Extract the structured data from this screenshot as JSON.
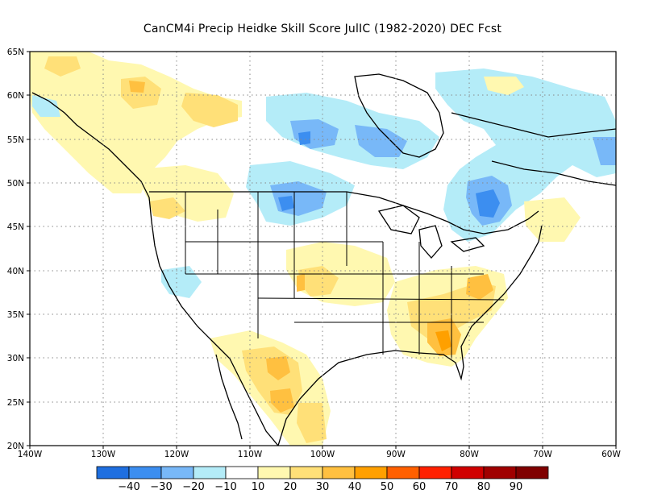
{
  "title": "CanCM4i Precip Heidke Skill Score JulIC (1982-2020) DEC Fcst",
  "axes": {
    "lat_labels": [
      "65N",
      "60N",
      "55N",
      "50N",
      "45N",
      "40N",
      "35N",
      "30N",
      "25N",
      "20N"
    ],
    "lon_labels": [
      "140W",
      "130W",
      "120W",
      "110W",
      "100W",
      "90W",
      "80W",
      "70W",
      "60W"
    ]
  },
  "colorbar": {
    "labels": [
      "-40",
      "-30",
      "-20",
      "-10",
      "10",
      "20",
      "30",
      "40",
      "50",
      "60",
      "70",
      "80",
      "90"
    ],
    "colors": [
      "#1f6fe0",
      "#3c8ef0",
      "#78b8f8",
      "#b4ecf8",
      "#ffffff",
      "#fff8b0",
      "#ffe078",
      "#ffc040",
      "#ffa000",
      "#ff6000",
      "#ff2000",
      "#d00000",
      "#a00000",
      "#800000"
    ]
  },
  "regions": [
    {
      "name": "pacific-northwest-positive",
      "level": "10-20",
      "color": "#fff8b0"
    },
    {
      "name": "northern-plains-negative",
      "level": "-20 to -30",
      "color": "#78b8f8"
    },
    {
      "name": "ontario-negative",
      "level": "-30",
      "color": "#3c8ef0"
    },
    {
      "name": "georgia-positive",
      "level": "30-40",
      "color": "#ffc040"
    },
    {
      "name": "mexico-positive",
      "level": "20-30",
      "color": "#ffe078"
    }
  ]
}
